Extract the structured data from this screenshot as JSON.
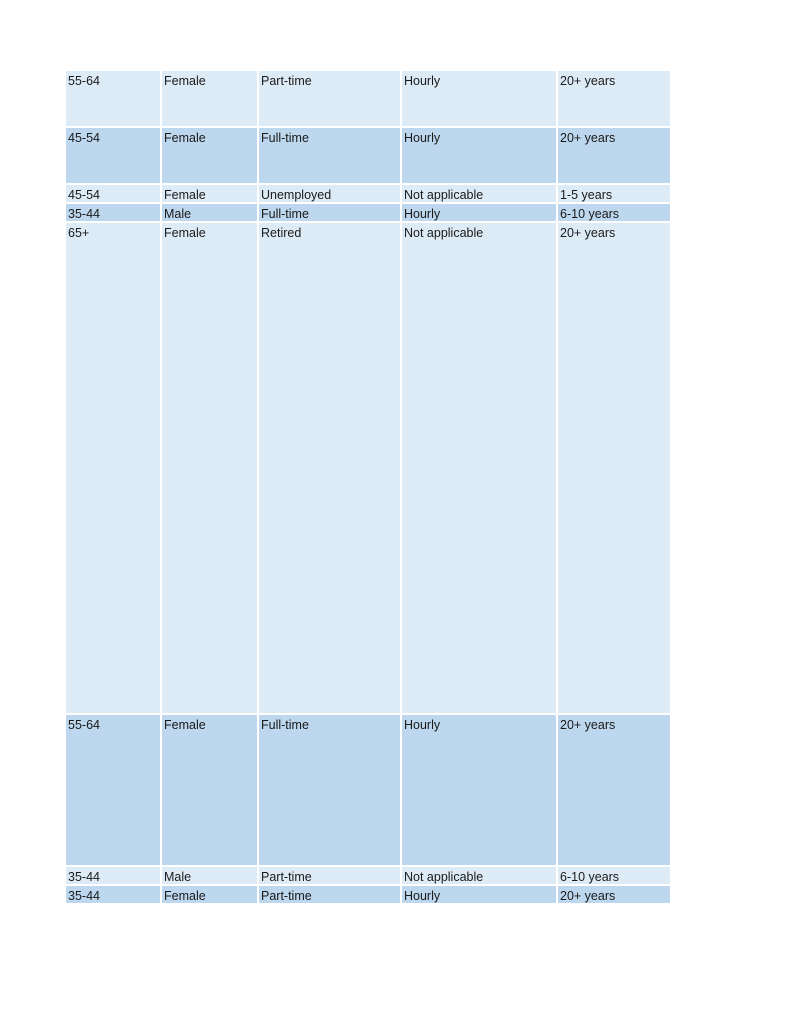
{
  "colors": {
    "light": "#DDEBF7",
    "dark": "#BDD7EE"
  },
  "rows": [
    {
      "cells": [
        "55-64",
        "Female",
        "Part-time",
        "Hourly",
        "20+ years"
      ],
      "shade": "light"
    },
    {
      "cells": [
        "45-54",
        "Female",
        "Full-time",
        "Hourly",
        "20+ years"
      ],
      "shade": "dark"
    },
    {
      "cells": [
        "45-54",
        "Female",
        "Unemployed",
        "Not applicable",
        "1-5 years"
      ],
      "shade": "light"
    },
    {
      "cells": [
        "35-44",
        "Male",
        "Full-time",
        "Hourly",
        "6-10 years"
      ],
      "shade": "dark"
    },
    {
      "cells": [
        "65+",
        "Female",
        "Retired",
        "Not applicable",
        "20+ years"
      ],
      "shade": "light"
    },
    {
      "cells": [
        "55-64",
        "Female",
        "Full-time",
        "Hourly",
        "20+ years"
      ],
      "shade": "dark"
    },
    {
      "cells": [
        "35-44",
        "Male",
        "Part-time",
        "Not applicable",
        "6-10 years"
      ],
      "shade": "light"
    },
    {
      "cells": [
        "35-44",
        "Female",
        "Part-time",
        "Hourly",
        "20+ years"
      ],
      "shade": "dark"
    }
  ]
}
